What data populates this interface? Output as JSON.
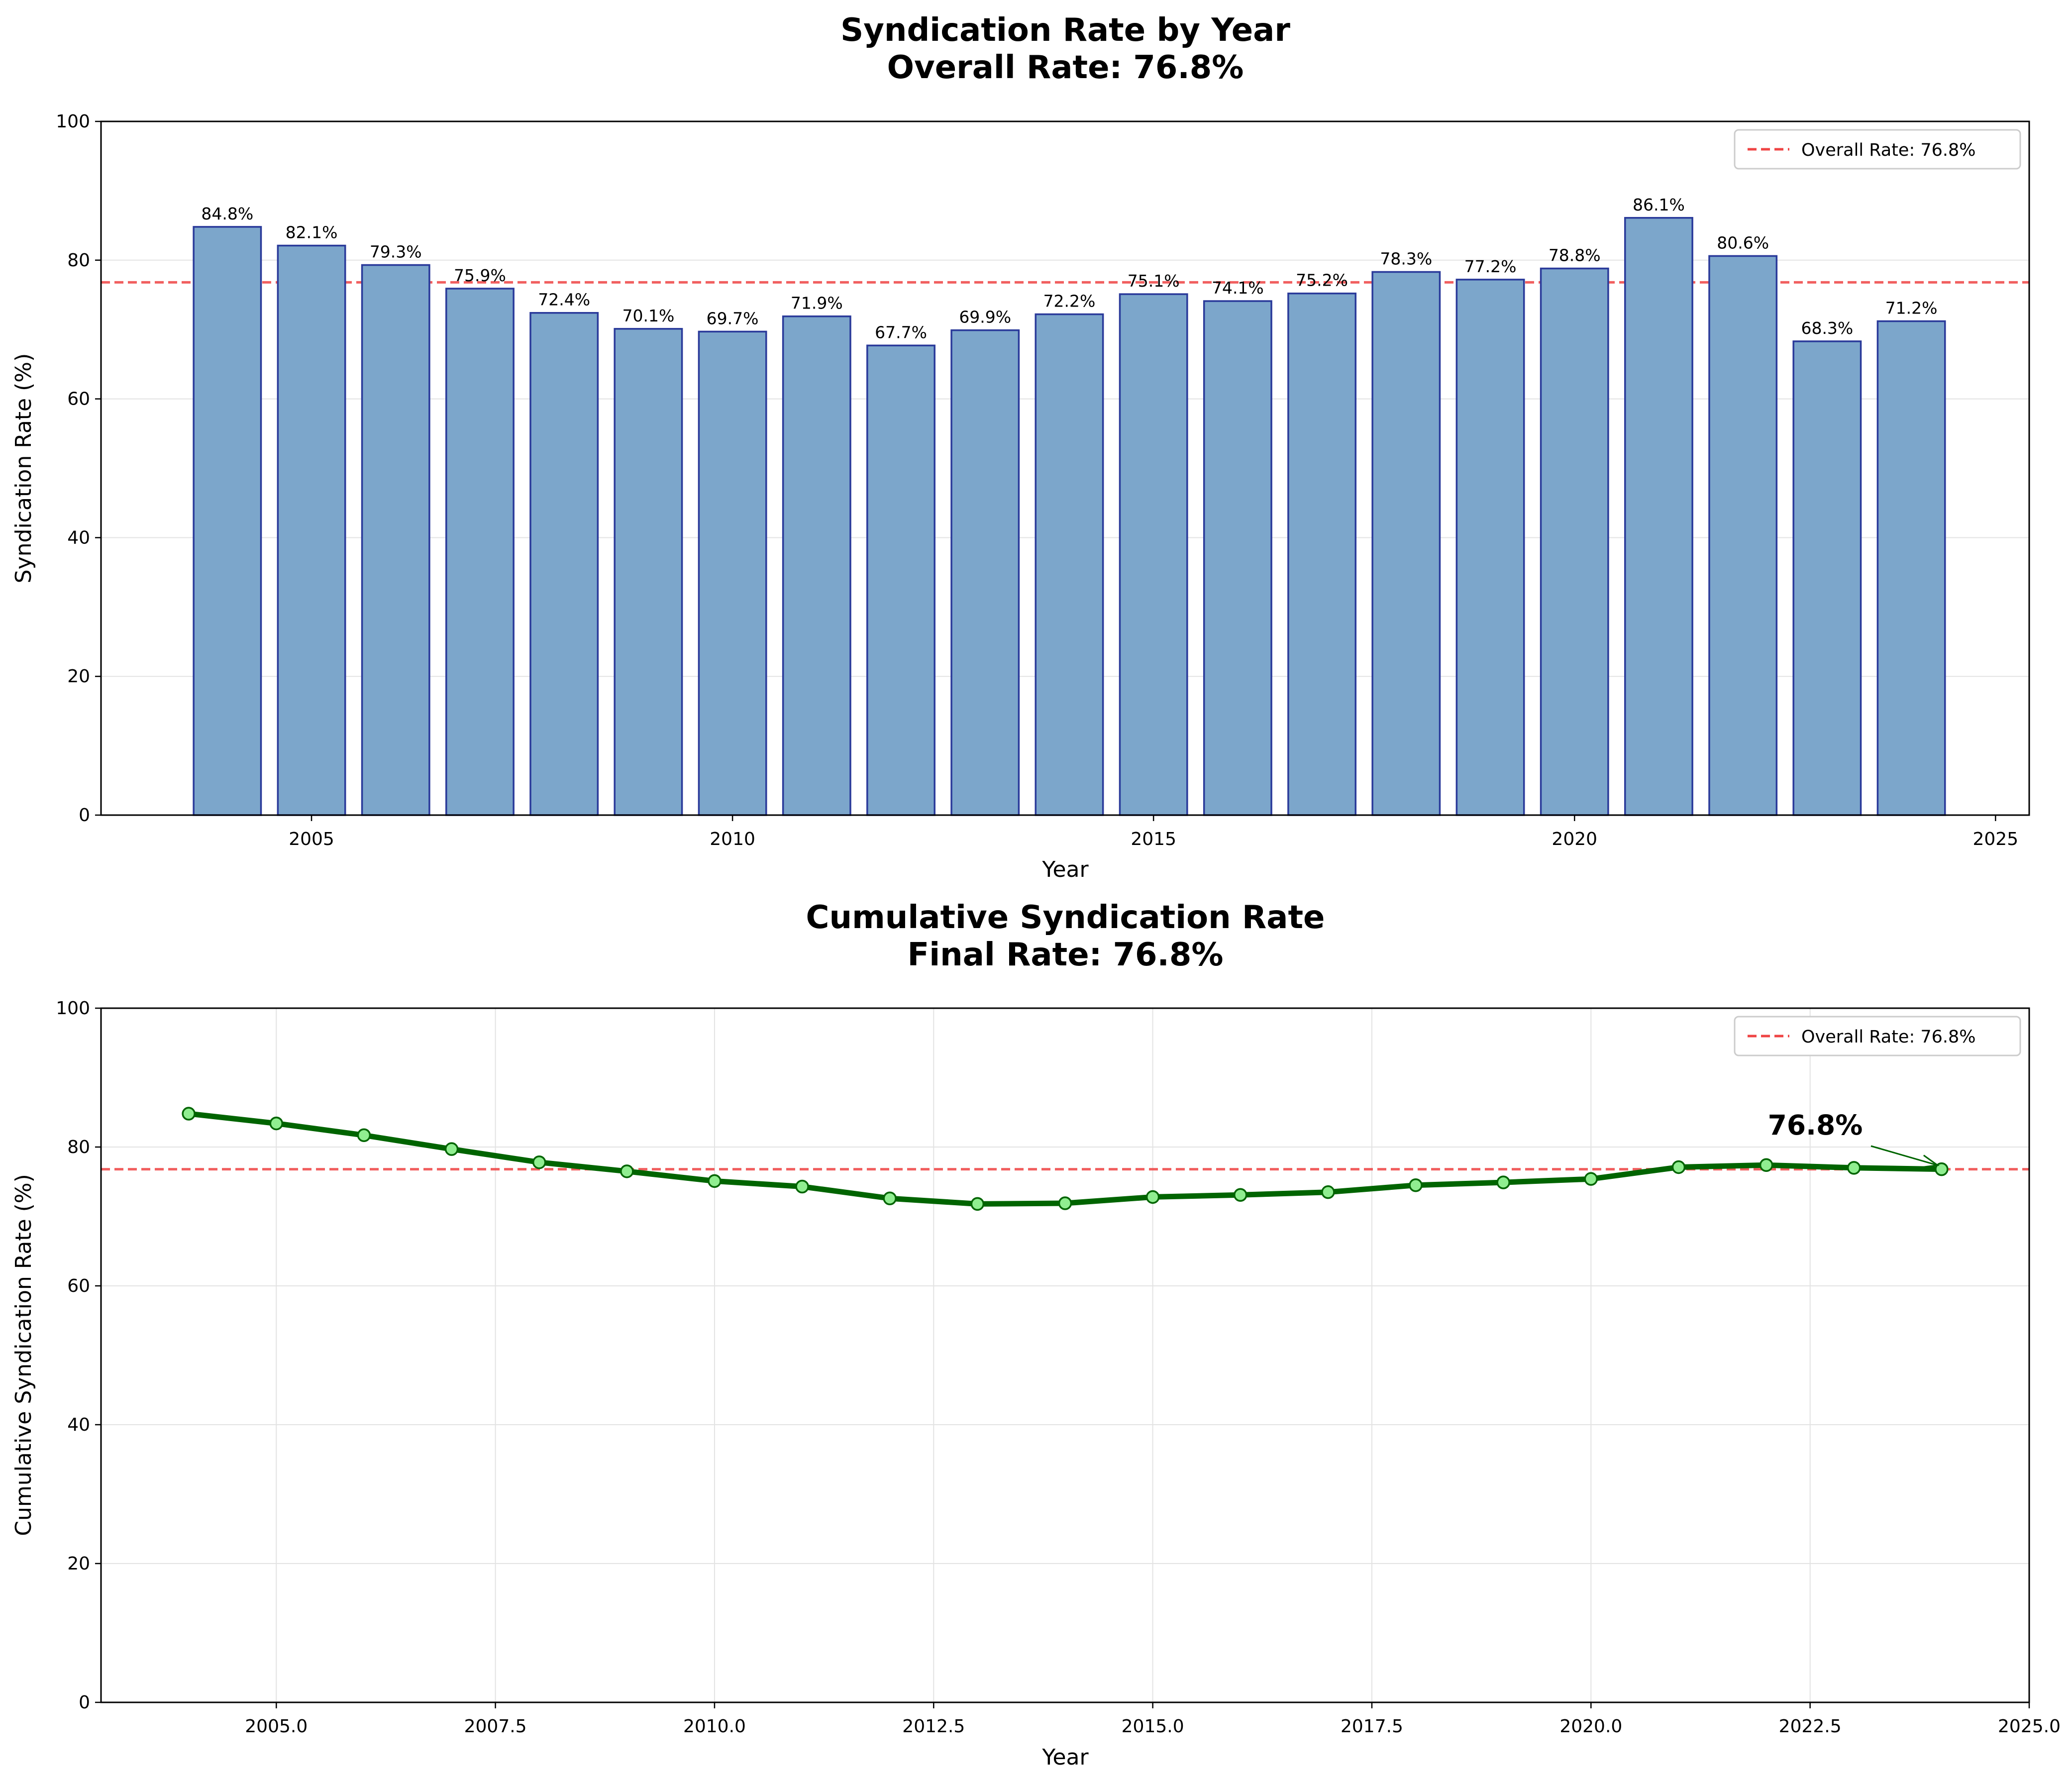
{
  "chart_data": [
    {
      "type": "bar",
      "title_line1": "Syndication Rate by Year",
      "title_line2": "Overall Rate: 76.8%",
      "xlabel": "Year",
      "ylabel": "Syndication Rate (%)",
      "xlim": [
        2002.5,
        2025.4
      ],
      "ylim": [
        0,
        100
      ],
      "xticks": [
        2005,
        2010,
        2015,
        2020,
        2025
      ],
      "xtick_labels": [
        "2005",
        "2010",
        "2015",
        "2020",
        "2025"
      ],
      "yticks": [
        0,
        20,
        40,
        60,
        80,
        100
      ],
      "grid": "horizontal",
      "legend_placement": "top-right",
      "reference_line": {
        "label": "Overall Rate: 76.8%",
        "value": 76.8,
        "color": "#ef4444"
      },
      "bar_color": "#7ca6cb",
      "bar_edge_color": "#2a3a9a",
      "x": [
        2004,
        2005,
        2006,
        2007,
        2008,
        2009,
        2010,
        2011,
        2012,
        2013,
        2014,
        2015,
        2016,
        2017,
        2018,
        2019,
        2020,
        2021,
        2022,
        2023,
        2024
      ],
      "values": [
        84.8,
        82.1,
        79.3,
        75.9,
        72.4,
        70.1,
        69.7,
        71.9,
        67.7,
        69.9,
        72.2,
        75.1,
        74.1,
        75.2,
        78.3,
        77.2,
        78.8,
        86.1,
        80.6,
        68.3,
        71.2
      ],
      "value_labels": [
        "84.8%",
        "82.1%",
        "79.3%",
        "75.9%",
        "72.4%",
        "70.1%",
        "69.7%",
        "71.9%",
        "67.7%",
        "69.9%",
        "72.2%",
        "75.1%",
        "74.1%",
        "75.2%",
        "78.3%",
        "77.2%",
        "78.8%",
        "86.1%",
        "80.6%",
        "68.3%",
        "71.2%"
      ]
    },
    {
      "type": "line",
      "title_line1": "Cumulative Syndication Rate",
      "title_line2": "Final Rate: 76.8%",
      "xlabel": "Year",
      "ylabel": "Cumulative Syndication Rate (%)",
      "xlim": [
        2003,
        2025
      ],
      "ylim": [
        0,
        100
      ],
      "xticks": [
        2005,
        2007.5,
        2010,
        2012.5,
        2015,
        2017.5,
        2020,
        2022.5,
        2025
      ],
      "xtick_labels": [
        "2005.0",
        "2007.5",
        "2010.0",
        "2012.5",
        "2015.0",
        "2017.5",
        "2020.0",
        "2022.5",
        "2025.0"
      ],
      "yticks": [
        0,
        20,
        40,
        60,
        80,
        100
      ],
      "grid": "both",
      "legend_placement": "top-right",
      "reference_line": {
        "label": "Overall Rate: 76.8%",
        "value": 76.8,
        "color": "#ef4444"
      },
      "line_color": "#006400",
      "marker_color": "#90ee90",
      "x": [
        2004,
        2005,
        2006,
        2007,
        2008,
        2009,
        2010,
        2011,
        2012,
        2013,
        2014,
        2015,
        2016,
        2017,
        2018,
        2019,
        2020,
        2021,
        2022,
        2023,
        2024
      ],
      "values": [
        84.8,
        83.4,
        81.7,
        79.7,
        77.8,
        76.5,
        75.1,
        74.3,
        72.6,
        71.8,
        71.9,
        72.8,
        73.1,
        73.5,
        74.5,
        74.9,
        75.4,
        77.1,
        77.4,
        77.0,
        76.8
      ],
      "annotation": {
        "text": "76.8%",
        "x": 2024,
        "y": 76.8
      }
    }
  ]
}
